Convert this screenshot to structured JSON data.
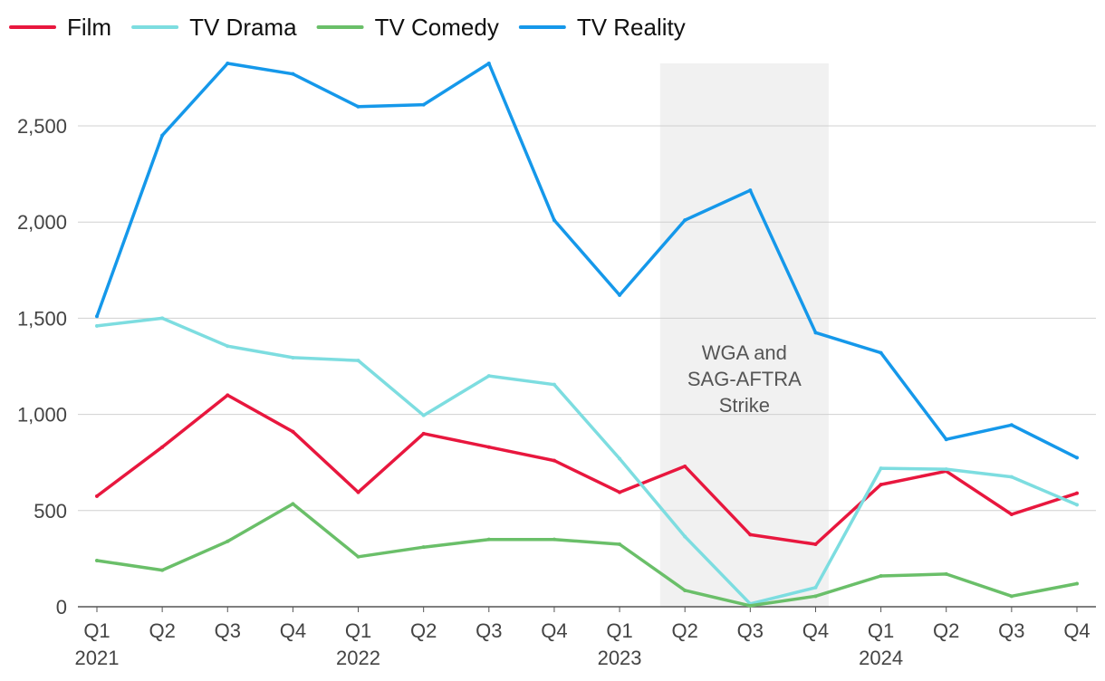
{
  "chart_data": {
    "type": "line",
    "title": "",
    "xlabel": "",
    "ylabel": "",
    "ylim": [
      0,
      2800
    ],
    "yticks": [
      0,
      500,
      1000,
      1500,
      2000,
      2500
    ],
    "ytick_labels": [
      "0",
      "500",
      "1,000",
      "1,500",
      "2,000",
      "2,500"
    ],
    "grid": true,
    "legend_position": "top-left",
    "categories": [
      "Q1",
      "Q2",
      "Q3",
      "Q4",
      "Q1",
      "Q2",
      "Q3",
      "Q4",
      "Q1",
      "Q2",
      "Q3",
      "Q4",
      "Q1",
      "Q2",
      "Q3",
      "Q4"
    ],
    "year_labels": [
      {
        "index": 0,
        "label": "2021"
      },
      {
        "index": 4,
        "label": "2022"
      },
      {
        "index": 8,
        "label": "2023"
      },
      {
        "index": 12,
        "label": "2024"
      }
    ],
    "series": [
      {
        "name": "Film",
        "color": "#e8173e",
        "values": [
          575,
          830,
          1100,
          910,
          595,
          900,
          830,
          760,
          595,
          730,
          375,
          325,
          635,
          705,
          480,
          590
        ]
      },
      {
        "name": "TV Drama",
        "color": "#7ddde0",
        "values": [
          1460,
          1500,
          1355,
          1295,
          1280,
          995,
          1200,
          1155,
          770,
          365,
          15,
          100,
          720,
          715,
          675,
          530
        ]
      },
      {
        "name": "TV Comedy",
        "color": "#6abf69",
        "values": [
          240,
          190,
          340,
          535,
          260,
          310,
          350,
          350,
          325,
          85,
          5,
          55,
          160,
          170,
          55,
          120
        ]
      },
      {
        "name": "TV Reality",
        "color": "#1598ea",
        "values": [
          1510,
          2450,
          2825,
          2770,
          2600,
          2610,
          2825,
          2010,
          1620,
          2010,
          2165,
          1425,
          1320,
          870,
          945,
          775
        ]
      }
    ],
    "annotations": [
      {
        "type": "shaded-band",
        "from_index": 9,
        "to_index": 11,
        "lines": [
          "WGA and",
          "SAG-AFTRA",
          "Strike"
        ],
        "color": "#f1f1f1"
      }
    ]
  }
}
